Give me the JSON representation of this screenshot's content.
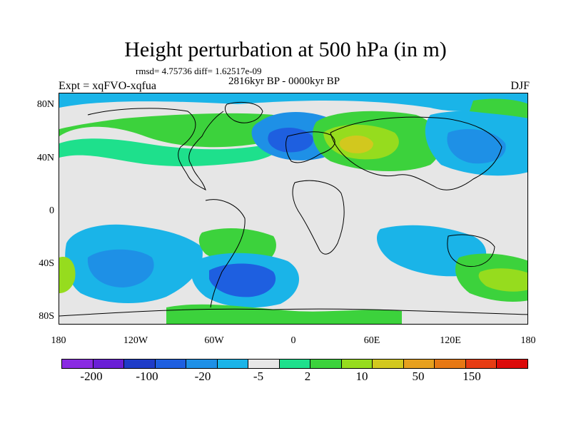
{
  "title": "Height perturbation at 500 hPa (in m)",
  "stats": "rmsd= 4.75736 diff= 1.62517e-09",
  "period": "2816kyr BP - 0000kyr BP",
  "experiment": "Expt = xqFVO-xqfua",
  "season": "DJF",
  "lat_labels": [
    "80N",
    "40N",
    "0",
    "40S",
    "80S"
  ],
  "lon_labels": [
    "180",
    "120W",
    "60W",
    "0",
    "60E",
    "120E",
    "180"
  ],
  "colorbar": {
    "colors": [
      "#8a2be2",
      "#6a1fd6",
      "#1f3cc8",
      "#1e5fe0",
      "#1e90e6",
      "#1ab4e8",
      "#e6e6e6",
      "#1ee08c",
      "#3cd23c",
      "#96dc1e",
      "#d2c81e",
      "#e6a01e",
      "#e67814",
      "#e63c14",
      "#dc0a0a"
    ],
    "labels": [
      "-200",
      "-100",
      "-20",
      "-5",
      "2",
      "10",
      "50",
      "150"
    ]
  },
  "palette": {
    "land_outline": "#000000",
    "background": "#e6e6e6"
  }
}
